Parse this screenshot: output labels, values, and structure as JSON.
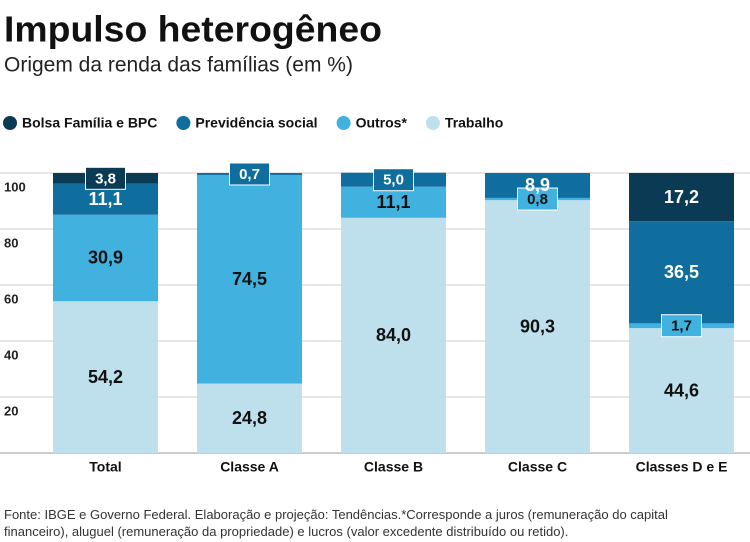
{
  "chart_data": {
    "type": "stacked-bar",
    "title": "Impulso heterogêneo",
    "subtitle": "Origem da renda das famílias (em %)",
    "categories": [
      "Total",
      "Classe A",
      "Classe B",
      "Classe C",
      "Classes D e E"
    ],
    "series": [
      {
        "name": "Bolsa Família e BPC",
        "color": "#0b3a55",
        "values": [
          3.8,
          0,
          0,
          0,
          17.2
        ],
        "value_labels": [
          "3,8",
          null,
          null,
          null,
          "17,2"
        ]
      },
      {
        "name": "Previdência social",
        "color": "#0f6e9e",
        "values": [
          11.1,
          0.7,
          5.0,
          8.9,
          36.5
        ],
        "value_labels": [
          "11,1",
          "0,7",
          "5,0",
          "8,9",
          "36,5"
        ]
      },
      {
        "name": "Outros*",
        "color": "#41b1df",
        "values": [
          30.9,
          74.5,
          11.1,
          0.8,
          1.7
        ],
        "value_labels": [
          "30,9",
          "74,5",
          "11,1",
          "0,8",
          "1,7"
        ]
      },
      {
        "name": "Trabalho",
        "color": "#bde0ec",
        "values": [
          54.2,
          24.8,
          84.0,
          90.3,
          44.6
        ],
        "value_labels": [
          "54,2",
          "24,8",
          "84,0",
          "90,3",
          "44,6"
        ]
      }
    ],
    "ylim": [
      0,
      100
    ],
    "yticks": [
      20,
      40,
      60,
      80,
      100
    ],
    "grid": true,
    "note": "Fonte: IBGE e Governo Federal. Elaboração e projeção: Tendências.*Corresponde a juros (remuneração do capital financeiro), aluguel (remuneração da propriedade) e lucros (valor excedente distribuído ou retido)."
  }
}
